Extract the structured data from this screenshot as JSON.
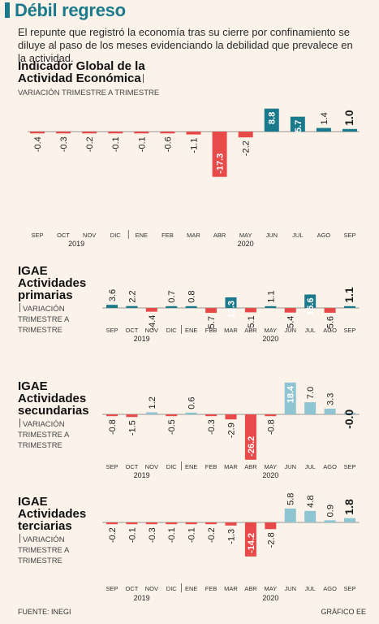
{
  "header": {
    "title": "Débil regreso",
    "subtitle": "El repunte que registró la economía tras su cierre por confinamiento se diluye al paso de los meses evidenciando la debilidad que prevalece en la actividad."
  },
  "footer": {
    "source": "FUENTE: INEGI",
    "credit": "GRÁFICO EE"
  },
  "colors": {
    "positive": "#1a7a8c",
    "negative": "#e84a4a",
    "light_positive": "#8fc4d2",
    "accent": "#1a7a8c"
  },
  "chart_data": [
    {
      "type": "bar",
      "title_lines": [
        "Indicador Global de la",
        "Actividad Económica"
      ],
      "subtitle_lines": [
        "VARIACIÓN TRIMESTRE A TRIMESTRE"
      ],
      "categories": [
        "SEP",
        "OCT",
        "NOV",
        "DIC",
        "ENE",
        "FEB",
        "MAR",
        "ABR",
        "MAY",
        "JUN",
        "JUL",
        "AGO",
        "SEP"
      ],
      "values": [
        -0.4,
        -0.3,
        -0.2,
        -0.1,
        -0.1,
        -0.6,
        -1.1,
        -17.3,
        -2.2,
        8.8,
        5.7,
        1.4,
        1.0
      ],
      "labels": [
        "-0.4",
        "-0.3",
        "-0.2",
        "-0.1",
        "-0.1",
        "-0.6",
        "-1.1",
        "-17.3",
        "-2.2",
        "8.8",
        "5.7",
        "1.4",
        "1.0"
      ],
      "years": [
        "2019",
        "2020"
      ]
    },
    {
      "type": "bar",
      "title_lines": [
        "IGAE",
        "Actividades",
        "primarias"
      ],
      "subtitle_lines": [
        "VARIACIÓN",
        "TRIMESTRE A",
        "TRIMESTRE"
      ],
      "categories": [
        "SEP",
        "OCT",
        "NOV",
        "DIC",
        "ENE",
        "FEB",
        "MAR",
        "ABR",
        "MAY",
        "JUN",
        "JUL",
        "AGO",
        "SEP"
      ],
      "values": [
        3.6,
        2.2,
        -4.4,
        0.7,
        0.8,
        -5.7,
        12.3,
        -5.1,
        1.1,
        -5.4,
        15.6,
        -5.6,
        1.1
      ],
      "labels": [
        "3.6",
        "2.2",
        "-4.4",
        "0.7",
        "0.8",
        "-5.7",
        "12.3",
        "-5.1",
        "1.1",
        "-5.4",
        "15.6",
        "-5.6",
        "1.1"
      ],
      "years": [
        "2019",
        "2020"
      ]
    },
    {
      "type": "bar",
      "title_lines": [
        "IGAE",
        "Actividades",
        "secundarias"
      ],
      "subtitle_lines": [
        "VARIACIÓN",
        "TRIMESTRE A",
        "TRIMESTRE"
      ],
      "categories": [
        "SEP",
        "OCT",
        "NOV",
        "DIC",
        "ENE",
        "FEB",
        "MAR",
        "ABR",
        "MAY",
        "JUN",
        "JUL",
        "AGO",
        "SEP"
      ],
      "values": [
        -0.8,
        -1.5,
        1.2,
        -0.5,
        0.6,
        -0.3,
        -2.9,
        -26.2,
        -0.8,
        18.4,
        7.0,
        3.3,
        -0.0
      ],
      "labels": [
        "-0.8",
        "-1.5",
        "1.2",
        "-0.5",
        "0.6",
        "-0.3",
        "-2.9",
        "-26.2",
        "-0.8",
        "18.4",
        "7.0",
        "3.3",
        "-0.0"
      ],
      "years": [
        "2019",
        "2020"
      ]
    },
    {
      "type": "bar",
      "title_lines": [
        "IGAE",
        "Actividades",
        "terciarias"
      ],
      "subtitle_lines": [
        "VARIACIÓN",
        "TRIMESTRE A",
        "TRIMESTRE"
      ],
      "categories": [
        "SEP",
        "OCT",
        "NOV",
        "DIC",
        "ENE",
        "FEB",
        "MAR",
        "ABR",
        "MAY",
        "JUN",
        "JUL",
        "AGO",
        "SEP"
      ],
      "values": [
        -0.2,
        -0.1,
        -0.3,
        -0.1,
        -0.1,
        -0.2,
        -1.3,
        -14.2,
        -2.8,
        5.8,
        4.8,
        0.9,
        1.8
      ],
      "labels": [
        "-0.2",
        "-0.1",
        "-0.3",
        "-0.1",
        "-0.1",
        "-0.2",
        "-1.3",
        "-14.2",
        "-2.8",
        "5.8",
        "4.8",
        "0.9",
        "1.8"
      ],
      "years": [
        "2019",
        "2020"
      ]
    }
  ]
}
